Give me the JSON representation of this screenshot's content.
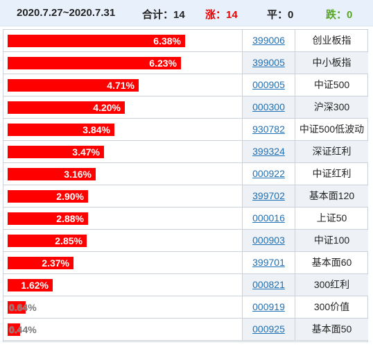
{
  "header": {
    "date_range": "2020.7.27~2020.7.31",
    "total": "合计：14",
    "up": "涨：14",
    "flat": "平：0",
    "down": "跌：0"
  },
  "colors": {
    "up": "#e60000",
    "down": "#55a820",
    "bar": "#ff0000",
    "link": "#1f6fb5",
    "header_bg": "#e8f1fb"
  },
  "chart_data": {
    "type": "bar",
    "orientation": "horizontal",
    "title": "",
    "xlabel": "",
    "ylabel": "",
    "xlim": [
      0,
      6.38
    ],
    "value_unit": "%",
    "categories": [
      "创业板指",
      "中小板指",
      "中证500",
      "沪深300",
      "中证500低波动",
      "深证红利",
      "中证红利",
      "基本面120",
      "上证50",
      "中证100",
      "基本面60",
      "300红利",
      "300价值",
      "基本面50"
    ],
    "codes": [
      "399006",
      "399005",
      "000905",
      "000300",
      "930782",
      "399324",
      "000922",
      "399702",
      "000016",
      "000903",
      "399701",
      "000821",
      "000919",
      "000925"
    ],
    "values": [
      6.38,
      6.23,
      4.71,
      4.2,
      3.84,
      3.47,
      3.16,
      2.9,
      2.88,
      2.85,
      2.37,
      1.62,
      0.64,
      0.44
    ],
    "value_labels": [
      "6.38%",
      "6.23%",
      "4.71%",
      "4.20%",
      "3.84%",
      "3.47%",
      "3.16%",
      "2.90%",
      "2.88%",
      "2.85%",
      "2.37%",
      "1.62%",
      "0.64%",
      "0.44%"
    ]
  }
}
